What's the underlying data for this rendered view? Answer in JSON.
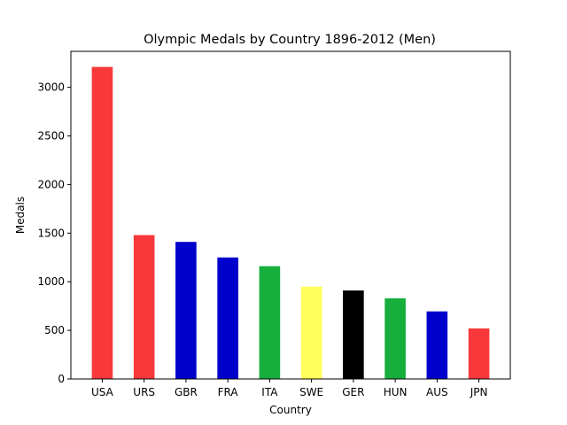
{
  "chart_data": {
    "type": "bar",
    "title": "Olympic Medals by Country 1896-2012 (Men)",
    "xlabel": "Country",
    "ylabel": "Medals",
    "categories": [
      "USA",
      "URS",
      "GBR",
      "FRA",
      "ITA",
      "SWE",
      "GER",
      "HUN",
      "AUS",
      "JPN"
    ],
    "values": [
      3210,
      1480,
      1410,
      1250,
      1160,
      950,
      910,
      830,
      695,
      520
    ],
    "colors": [
      "#f8383a",
      "#f8383a",
      "#0000cc",
      "#0000cc",
      "#16ae3c",
      "#ffff5c",
      "#000000",
      "#16ae3c",
      "#0000cc",
      "#f8383a"
    ],
    "ylim": [
      0,
      3370
    ],
    "yticks": [
      0,
      500,
      1000,
      1500,
      2000,
      2500,
      3000
    ],
    "grid": false,
    "legend": "none"
  }
}
